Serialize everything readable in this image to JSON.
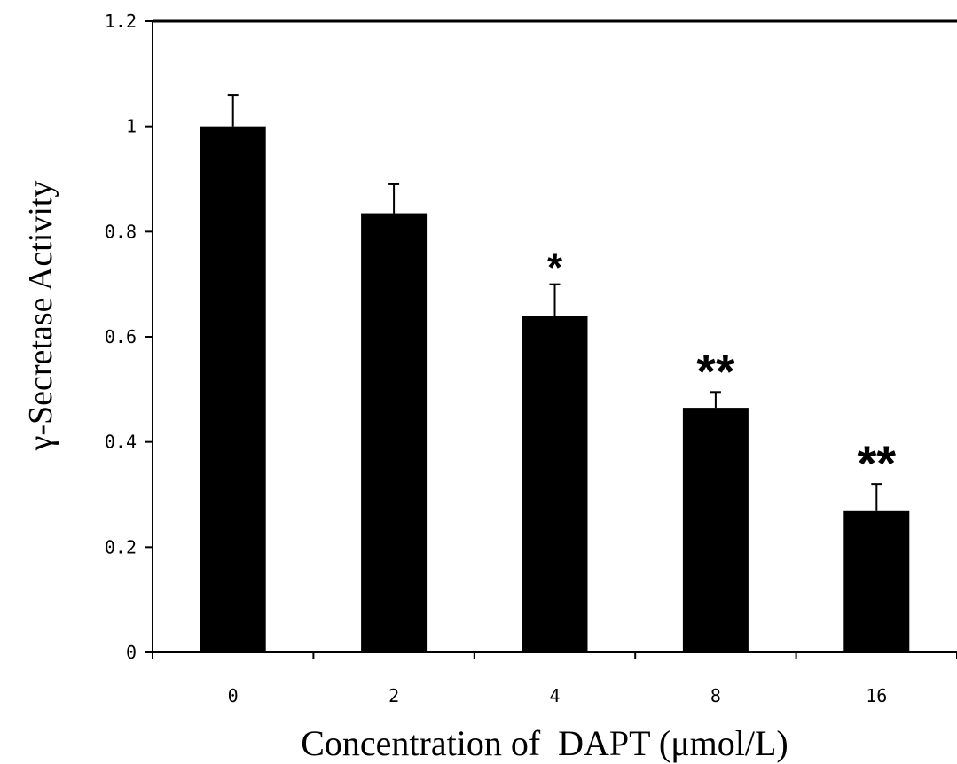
{
  "chart_data": {
    "type": "bar",
    "title": "",
    "xlabel": "Concentration of  DAPT (μmol/L)",
    "ylabel": "γ-Secretase Activity",
    "categories": [
      "0",
      "2",
      "4",
      "8",
      "16"
    ],
    "values": [
      1.0,
      0.835,
      0.64,
      0.465,
      0.27
    ],
    "error_upper": [
      0.06,
      0.055,
      0.06,
      0.03,
      0.05
    ],
    "significance": [
      "",
      "",
      "*",
      "**",
      "**"
    ],
    "ylim": [
      0,
      1.2
    ],
    "yticks": [
      "0",
      "0.2",
      "0.4",
      "0.6",
      "0.8",
      "1",
      "1.2"
    ],
    "grid": false,
    "bar_color": "#000000"
  }
}
